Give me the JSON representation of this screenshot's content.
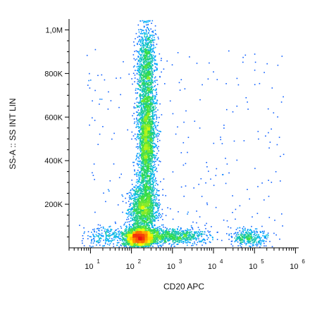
{
  "chart_data": {
    "type": "scatter",
    "subtype": "flow-cytometry-density-dot-plot",
    "xlabel": "CD20 APC",
    "ylabel": "SS-A :: SS INT LIN",
    "x_scale": "log",
    "y_scale": "linear",
    "xlim": [
      3,
      1200000
    ],
    "ylim": [
      0,
      1050000
    ],
    "x_ticks": [
      {
        "value": 10,
        "base": "10",
        "exp": "1"
      },
      {
        "value": 100,
        "base": "10",
        "exp": "2"
      },
      {
        "value": 1000,
        "base": "10",
        "exp": "3"
      },
      {
        "value": 10000,
        "base": "10",
        "exp": "4"
      },
      {
        "value": 100000,
        "base": "10",
        "exp": "5"
      },
      {
        "value": 1000000,
        "base": "10",
        "exp": "6"
      }
    ],
    "y_ticks": [
      {
        "value": 200000,
        "label": "200K"
      },
      {
        "value": 400000,
        "label": "400K"
      },
      {
        "value": 600000,
        "label": "600K"
      },
      {
        "value": 800000,
        "label": "800K"
      },
      {
        "value": 1000000,
        "label": "1,0M"
      }
    ],
    "grid": false,
    "legend": "none",
    "color_scale": [
      "#1a1aff",
      "#00b4ff",
      "#33dd44",
      "#ffff00",
      "#ff8800",
      "#ee1111"
    ],
    "populations": [
      {
        "x_center": 150,
        "y_center": 50000,
        "x_spread_log": 0.18,
        "y_spread": 22000,
        "density": "very-high",
        "points": 2000
      },
      {
        "x_center": 230,
        "y_center": 520000,
        "x_spread_log": 0.11,
        "y_spread": 150000,
        "density": "high",
        "points": 2600
      },
      {
        "x_center": 220,
        "y_center": 850000,
        "x_spread_log": 0.12,
        "y_spread": 90000,
        "density": "medium",
        "points": 800
      },
      {
        "x_center": 190,
        "y_center": 180000,
        "x_spread_log": 0.18,
        "y_spread": 60000,
        "density": "high",
        "points": 1500
      },
      {
        "x_center": 800,
        "y_center": 55000,
        "x_spread_log": 0.45,
        "y_spread": 18000,
        "density": "medium",
        "points": 900
      },
      {
        "x_center": 70000,
        "y_center": 50000,
        "x_spread_log": 0.2,
        "y_spread": 20000,
        "density": "low",
        "points": 350
      },
      {
        "x_center": 30,
        "y_center": 50000,
        "x_spread_log": 0.3,
        "y_spread": 25000,
        "density": "low",
        "points": 250
      }
    ]
  }
}
